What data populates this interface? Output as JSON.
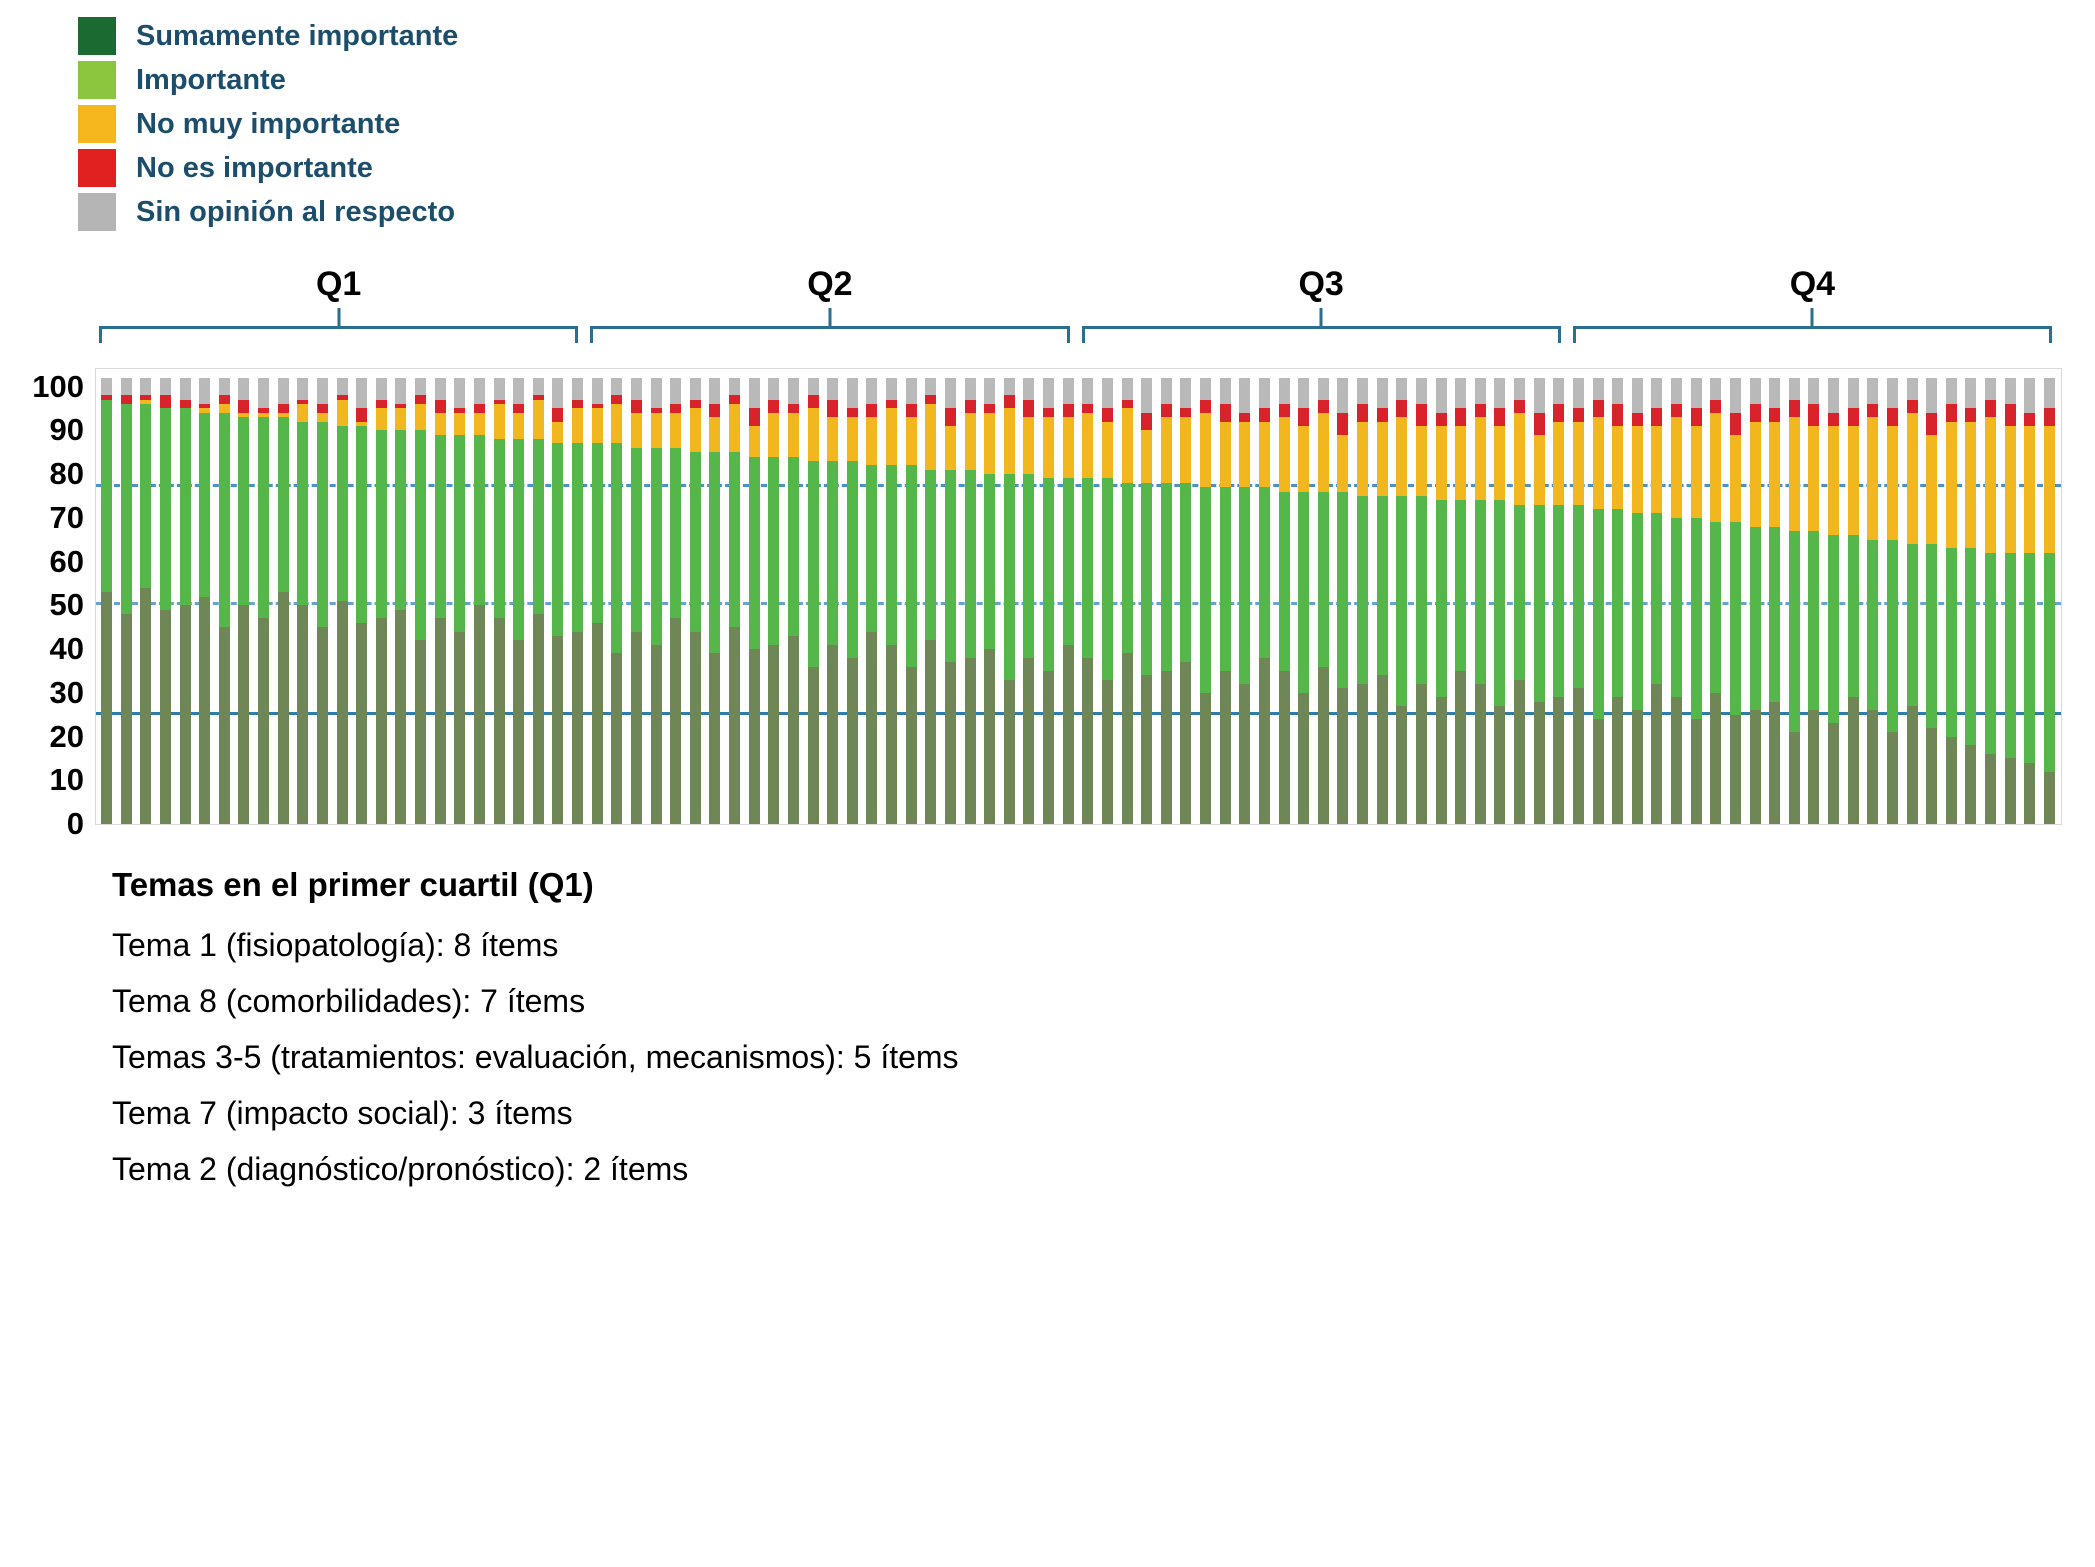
{
  "legend": {
    "items": [
      {
        "label": "Sumamente importante",
        "color": "#1a6a32"
      },
      {
        "label": "Importante",
        "color": "#8cc63f"
      },
      {
        "label": "No muy importante",
        "color": "#f5b71d"
      },
      {
        "label": "No es importante",
        "color": "#e0211f"
      },
      {
        "label": "Sin opinión al respecto",
        "color": "#b5b5b5"
      }
    ],
    "text_color": "#1c4e6b"
  },
  "footer": {
    "title": "Temas en el primer cuartil (Q1)",
    "lines": [
      "Tema 1 (fisiopatología): 8 ítems",
      "Tema 8 (comorbilidades): 7 ítems",
      "Temas 3-5 (tratamientos: evaluación, mecanismos): 5 ítems",
      "Tema 7 (impacto social): 3 ítems",
      "Tema 2 (diagnóstico/pronóstico): 2 ítems"
    ]
  },
  "chart_data": {
    "type": "bar",
    "stacked": true,
    "title": "",
    "xlabel": "",
    "ylabel": "",
    "ylim": [
      0,
      104
    ],
    "yticks": [
      0,
      10,
      20,
      30,
      40,
      50,
      60,
      70,
      80,
      90,
      100
    ],
    "legend_position": "top-left",
    "grid": false,
    "series_order": [
      "sumamente_importante",
      "importante",
      "no_muy_importante",
      "no_es_importante",
      "sin_opinion"
    ],
    "series_labels": {
      "sumamente_importante": "Sumamente importante",
      "importante": "Importante",
      "no_muy_importante": "No muy importante",
      "no_es_importante": "No es importante",
      "sin_opinion": "Sin opinión al respecto"
    },
    "series_colors": {
      "sumamente_importante": "#6f8757",
      "importante": "#55b649",
      "no_muy_importante": "#f2b61e",
      "no_es_importante": "#d8232b",
      "sin_opinion": "#b9b9b9"
    },
    "reference_lines": [
      {
        "y": 77,
        "style": "dashed",
        "color": "#4a90c9"
      },
      {
        "y": 50,
        "style": "dashed",
        "color": "#66a3d2"
      },
      {
        "y": 25,
        "style": "solid",
        "color": "#2e7ca8"
      }
    ],
    "quartile_groups": [
      {
        "label": "Q1",
        "bars": [
          1,
          25
        ]
      },
      {
        "label": "Q2",
        "bars": [
          26,
          50
        ]
      },
      {
        "label": "Q3",
        "bars": [
          51,
          75
        ]
      },
      {
        "label": "Q4",
        "bars": [
          76,
          100
        ]
      }
    ],
    "bars": [
      [
        53,
        44,
        0,
        1,
        4
      ],
      [
        48,
        48,
        0,
        2,
        4
      ],
      [
        54,
        42,
        1,
        1,
        4
      ],
      [
        49,
        46,
        0,
        3,
        4
      ],
      [
        50,
        45,
        0,
        2,
        5
      ],
      [
        52,
        42,
        1,
        1,
        6
      ],
      [
        45,
        49,
        2,
        2,
        4
      ],
      [
        50,
        43,
        1,
        3,
        5
      ],
      [
        47,
        46,
        1,
        1,
        7
      ],
      [
        53,
        40,
        1,
        2,
        6
      ],
      [
        50,
        42,
        4,
        1,
        5
      ],
      [
        45,
        47,
        2,
        2,
        6
      ],
      [
        51,
        40,
        6,
        1,
        4
      ],
      [
        46,
        45,
        1,
        3,
        7
      ],
      [
        47,
        43,
        5,
        2,
        5
      ],
      [
        49,
        41,
        5,
        1,
        6
      ],
      [
        42,
        48,
        6,
        2,
        4
      ],
      [
        47,
        42,
        5,
        3,
        5
      ],
      [
        44,
        45,
        5,
        1,
        7
      ],
      [
        50,
        39,
        5,
        2,
        6
      ],
      [
        47,
        41,
        8,
        1,
        5
      ],
      [
        42,
        46,
        6,
        2,
        6
      ],
      [
        48,
        40,
        9,
        1,
        4
      ],
      [
        43,
        44,
        5,
        3,
        7
      ],
      [
        44,
        43,
        8,
        2,
        5
      ],
      [
        46,
        41,
        8,
        1,
        6
      ],
      [
        39,
        48,
        9,
        2,
        4
      ],
      [
        44,
        42,
        8,
        3,
        5
      ],
      [
        41,
        45,
        8,
        1,
        7
      ],
      [
        47,
        39,
        8,
        2,
        6
      ],
      [
        44,
        41,
        10,
        2,
        5
      ],
      [
        39,
        46,
        8,
        3,
        6
      ],
      [
        45,
        40,
        11,
        2,
        4
      ],
      [
        40,
        44,
        7,
        4,
        7
      ],
      [
        41,
        43,
        10,
        3,
        5
      ],
      [
        43,
        41,
        10,
        2,
        6
      ],
      [
        36,
        47,
        12,
        3,
        4
      ],
      [
        41,
        42,
        10,
        4,
        5
      ],
      [
        38,
        45,
        10,
        2,
        7
      ],
      [
        44,
        38,
        11,
        3,
        6
      ],
      [
        41,
        41,
        13,
        2,
        5
      ],
      [
        36,
        46,
        11,
        3,
        6
      ],
      [
        42,
        39,
        15,
        2,
        4
      ],
      [
        37,
        44,
        10,
        4,
        7
      ],
      [
        38,
        43,
        13,
        3,
        5
      ],
      [
        40,
        40,
        14,
        2,
        6
      ],
      [
        33,
        47,
        15,
        3,
        4
      ],
      [
        38,
        42,
        13,
        4,
        5
      ],
      [
        35,
        44,
        14,
        2,
        7
      ],
      [
        41,
        38,
        14,
        3,
        6
      ],
      [
        38,
        41,
        15,
        2,
        6
      ],
      [
        33,
        46,
        13,
        3,
        7
      ],
      [
        39,
        39,
        17,
        2,
        5
      ],
      [
        34,
        44,
        12,
        4,
        8
      ],
      [
        35,
        43,
        15,
        3,
        6
      ],
      [
        37,
        41,
        15,
        2,
        7
      ],
      [
        30,
        47,
        17,
        3,
        5
      ],
      [
        35,
        42,
        15,
        4,
        6
      ],
      [
        32,
        45,
        15,
        2,
        8
      ],
      [
        38,
        39,
        15,
        3,
        7
      ],
      [
        35,
        41,
        17,
        3,
        6
      ],
      [
        30,
        46,
        15,
        4,
        7
      ],
      [
        36,
        40,
        18,
        3,
        5
      ],
      [
        31,
        45,
        13,
        5,
        8
      ],
      [
        32,
        43,
        17,
        4,
        6
      ],
      [
        34,
        41,
        17,
        3,
        7
      ],
      [
        27,
        48,
        18,
        4,
        5
      ],
      [
        32,
        43,
        16,
        5,
        6
      ],
      [
        29,
        45,
        17,
        3,
        8
      ],
      [
        35,
        39,
        17,
        4,
        7
      ],
      [
        32,
        42,
        19,
        3,
        6
      ],
      [
        27,
        47,
        17,
        4,
        7
      ],
      [
        33,
        40,
        21,
        3,
        5
      ],
      [
        28,
        45,
        16,
        5,
        8
      ],
      [
        29,
        44,
        19,
        4,
        6
      ],
      [
        31,
        42,
        19,
        3,
        7
      ],
      [
        24,
        48,
        21,
        4,
        5
      ],
      [
        29,
        43,
        19,
        5,
        6
      ],
      [
        26,
        45,
        20,
        3,
        8
      ],
      [
        32,
        39,
        20,
        4,
        7
      ],
      [
        29,
        41,
        23,
        3,
        6
      ],
      [
        24,
        46,
        21,
        4,
        7
      ],
      [
        30,
        39,
        25,
        3,
        5
      ],
      [
        25,
        44,
        20,
        5,
        8
      ],
      [
        26,
        42,
        24,
        4,
        6
      ],
      [
        28,
        40,
        24,
        3,
        7
      ],
      [
        21,
        46,
        26,
        4,
        5
      ],
      [
        26,
        41,
        24,
        5,
        6
      ],
      [
        23,
        43,
        25,
        3,
        8
      ],
      [
        29,
        37,
        25,
        4,
        7
      ],
      [
        26,
        39,
        28,
        3,
        6
      ],
      [
        21,
        44,
        26,
        4,
        7
      ],
      [
        27,
        37,
        30,
        3,
        5
      ],
      [
        22,
        42,
        25,
        5,
        8
      ],
      [
        20,
        43,
        29,
        4,
        6
      ],
      [
        18,
        45,
        29,
        3,
        7
      ],
      [
        16,
        46,
        31,
        4,
        5
      ],
      [
        15,
        47,
        29,
        5,
        6
      ],
      [
        14,
        48,
        29,
        3,
        8
      ],
      [
        12,
        50,
        29,
        4,
        7
      ]
    ]
  }
}
